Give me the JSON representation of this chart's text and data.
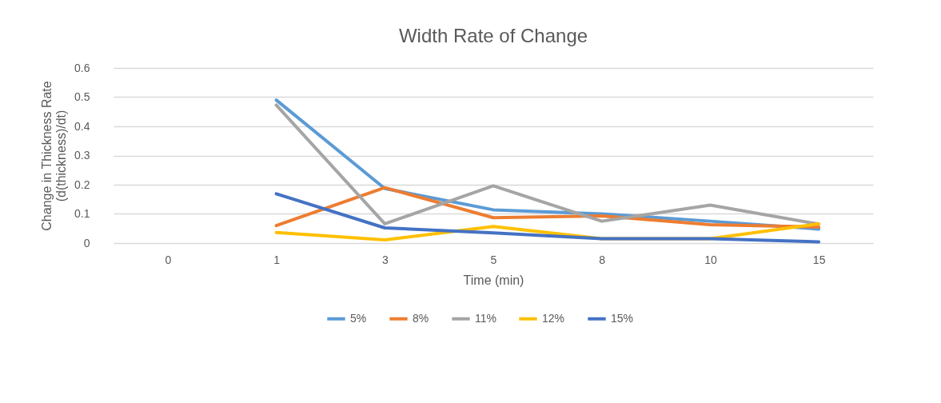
{
  "chart_data": {
    "type": "line",
    "title": "Width Rate of Change",
    "xlabel": "Time (min)",
    "ylabel": "Change in Thickness Rate (d(thickness)/dt)",
    "categories": [
      "0",
      "1",
      "3",
      "5",
      "8",
      "10",
      "15"
    ],
    "series": [
      {
        "name": "5%",
        "color": "#5b9bd5",
        "values": [
          null,
          0.49,
          0.187,
          0.114,
          0.1,
          0.075,
          0.048
        ]
      },
      {
        "name": "8%",
        "color": "#ed7d31",
        "values": [
          null,
          0.06,
          0.19,
          0.087,
          0.093,
          0.063,
          0.055
        ]
      },
      {
        "name": "11%",
        "color": "#a5a5a5",
        "values": [
          null,
          0.473,
          0.066,
          0.196,
          0.075,
          0.13,
          0.065
        ]
      },
      {
        "name": "12%",
        "color": "#ffc000",
        "values": [
          null,
          0.036,
          0.011,
          0.057,
          0.015,
          0.015,
          0.066
        ]
      },
      {
        "name": "15%",
        "color": "#4472c4",
        "values": [
          null,
          0.169,
          0.052,
          0.035,
          0.015,
          0.015,
          0.004
        ]
      }
    ],
    "ylim": [
      0,
      0.6
    ],
    "yticks": [
      0,
      0.1,
      0.2,
      0.3,
      0.4,
      0.5,
      0.6
    ],
    "grid": "y",
    "legend": "bottom",
    "marker": "none",
    "line_style": "solid"
  }
}
